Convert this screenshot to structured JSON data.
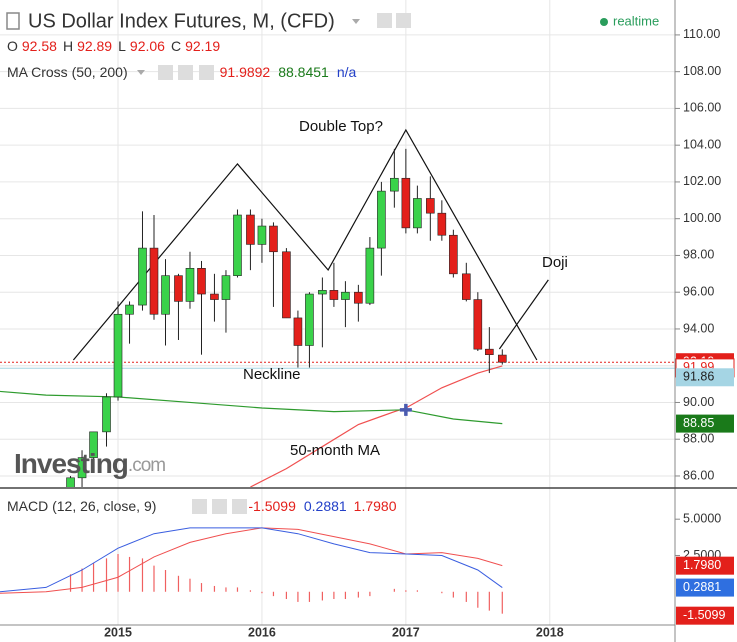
{
  "chart_data": [
    {
      "type": "candlestick",
      "title": "US Dollar Index Futures, M, (CFD)",
      "status": "realtime",
      "ohlc_labels": [
        "O",
        "H",
        "L",
        "C"
      ],
      "ohlc_values": [
        92.58,
        92.89,
        92.06,
        92.19
      ],
      "indicator_title": "MA Cross (50, 200)",
      "indicator_values": [
        91.9892,
        88.8451
      ],
      "indicator_na": "n/a",
      "indicator_colors": [
        "#e3201b",
        "#1a7a1a",
        "#2340c8"
      ],
      "x": [
        2014.67,
        2014.75,
        2014.83,
        2014.92,
        2015.0,
        2015.08,
        2015.17,
        2015.25,
        2015.33,
        2015.42,
        2015.5,
        2015.58,
        2015.67,
        2015.75,
        2015.83,
        2015.92,
        2016.0,
        2016.08,
        2016.17,
        2016.25,
        2016.33,
        2016.42,
        2016.5,
        2016.58,
        2016.67,
        2016.75,
        2016.83,
        2016.92,
        2017.0,
        2017.08,
        2017.17,
        2017.25,
        2017.33,
        2017.42,
        2017.5,
        2017.58,
        2017.67
      ],
      "open": [
        82.7,
        85.9,
        87.0,
        88.4,
        90.3,
        94.8,
        95.3,
        98.4,
        94.8,
        96.9,
        95.5,
        97.3,
        95.9,
        95.6,
        96.9,
        100.2,
        98.6,
        99.6,
        98.2,
        94.6,
        93.1,
        95.9,
        96.1,
        95.6,
        96.0,
        95.4,
        98.4,
        101.5,
        102.2,
        99.5,
        101.1,
        100.3,
        99.1,
        97.0,
        95.6,
        92.9,
        92.58
      ],
      "high": [
        86.0,
        87.4,
        88.4,
        90.5,
        95.5,
        95.5,
        100.4,
        100.2,
        97.8,
        97.0,
        98.2,
        97.7,
        97.0,
        97.2,
        100.5,
        100.5,
        100.0,
        99.8,
        98.4,
        95.0,
        96.0,
        96.8,
        97.6,
        96.6,
        96.4,
        99.0,
        102.0,
        103.8,
        103.8,
        101.8,
        102.3,
        101.0,
        99.4,
        97.6,
        96.0,
        94.1,
        92.89
      ],
      "low": [
        82.6,
        84.5,
        86.5,
        87.6,
        90.1,
        93.2,
        95.0,
        94.5,
        93.1,
        93.4,
        95.1,
        92.6,
        94.4,
        93.8,
        96.8,
        97.2,
        97.6,
        95.2,
        94.6,
        91.9,
        91.9,
        93.0,
        95.2,
        94.1,
        94.4,
        95.3,
        96.9,
        100.6,
        99.2,
        99.2,
        98.8,
        98.8,
        96.8,
        95.5,
        92.8,
        91.6,
        92.06
      ],
      "close": [
        85.9,
        87.0,
        88.4,
        90.3,
        94.8,
        95.3,
        98.4,
        94.8,
        96.9,
        95.5,
        97.3,
        95.9,
        95.6,
        96.9,
        100.2,
        98.6,
        99.6,
        98.2,
        94.6,
        93.1,
        95.9,
        96.1,
        95.6,
        96.0,
        95.4,
        98.4,
        101.5,
        102.2,
        99.5,
        101.1,
        100.3,
        99.1,
        97.0,
        95.6,
        92.9,
        92.6,
        92.19
      ],
      "up_color": "#3ad24a",
      "down_color": "#e3201b",
      "lines": [
        {
          "name": "50-month MA",
          "color": "#f05050",
          "x": [
            2015.92,
            2016.17,
            2016.42,
            2016.67,
            2016.92,
            2017.0,
            2017.25,
            2017.5,
            2017.67
          ],
          "values": [
            85.4,
            86.4,
            87.6,
            88.8,
            89.5,
            89.7,
            90.8,
            91.6,
            91.99
          ]
        },
        {
          "color": "#2e9b2e",
          "x": [
            2014.18,
            2014.5,
            2015.0,
            2015.5,
            2016.0,
            2016.5,
            2017.0,
            2017.33,
            2017.67
          ],
          "values": [
            90.6,
            90.4,
            90.3,
            90.0,
            89.7,
            89.5,
            89.6,
            89.1,
            88.85
          ]
        }
      ],
      "cross": {
        "x": 2017.0,
        "value": 89.6,
        "color": "#4a5bb0"
      },
      "pattern": {
        "name": "Double Top?",
        "x": [
          2014.69,
          2015.83,
          2016.46,
          2017.0,
          2017.91
        ],
        "values": [
          92.31,
          102.98,
          97.21,
          104.83,
          92.31
        ]
      },
      "doji": {
        "name": "Doji",
        "x": [
          2017.65,
          2017.99
        ],
        "values": [
          92.91,
          96.67
        ]
      },
      "neckline": {
        "name": "Neckline",
        "value": 91.86,
        "color": "#a5d5e4"
      },
      "price_line": {
        "value": 92.19,
        "color": "#e3201b"
      },
      "axis_labels": [
        {
          "value": 92.19,
          "bg": "#e3201b",
          "fg": "#ffffff"
        },
        {
          "value": 91.99,
          "bg": "#ffffff",
          "fg": "#e3201b"
        },
        {
          "value": 91.86,
          "bg": "#a5d5e4",
          "fg": "#222222"
        },
        {
          "value": 88.85,
          "bg": "#1a7a1a",
          "fg": "#ffffff"
        }
      ],
      "watermark": {
        "brand": "Investing",
        "suffix": ".com"
      },
      "xlim": [
        2014.18,
        2018.87
      ],
      "xticks": [
        2015,
        2016,
        2017,
        2018
      ],
      "ylim": [
        85.4,
        111.9
      ],
      "yticks": [
        {
          "value": 86,
          "label": "86.00"
        },
        {
          "value": 88,
          "label": "88.00"
        },
        {
          "value": 90,
          "label": "90.00"
        },
        {
          "value": 92,
          "label": "92.00"
        },
        {
          "value": 94,
          "label": "94.00"
        },
        {
          "value": 96,
          "label": "96.00"
        },
        {
          "value": 98,
          "label": "98.00"
        },
        {
          "value": 100,
          "label": "100.00"
        },
        {
          "value": 102,
          "label": "102.00"
        },
        {
          "value": 104,
          "label": "104.00"
        },
        {
          "value": 106,
          "label": "106.00"
        },
        {
          "value": 108,
          "label": "108.00"
        },
        {
          "value": 110,
          "label": "110.00"
        }
      ],
      "grid": true
    },
    {
      "type": "macd",
      "title": "MACD (12, 26, close, 9)",
      "legend": [
        {
          "value": -1.5099,
          "color": "#e3201b",
          "bg": "#e3201b"
        },
        {
          "value": 0.2881,
          "color": "#2340c8",
          "bg": "#2f6fe0"
        },
        {
          "value": 1.798,
          "label": "1.7980",
          "color": "#e3201b",
          "bg": "#e3201b"
        }
      ],
      "histogram": {
        "color": "#f06060",
        "x": [
          2014.67,
          2014.75,
          2014.83,
          2014.92,
          2015.0,
          2015.08,
          2015.17,
          2015.25,
          2015.33,
          2015.42,
          2015.5,
          2015.58,
          2015.67,
          2015.75,
          2015.83,
          2015.92,
          2016.0,
          2016.08,
          2016.17,
          2016.25,
          2016.33,
          2016.42,
          2016.5,
          2016.58,
          2016.67,
          2016.75,
          2016.83,
          2016.92,
          2017.0,
          2017.08,
          2017.17,
          2017.25,
          2017.33,
          2017.42,
          2017.5,
          2017.58,
          2017.67
        ],
        "values": [
          1.2,
          1.6,
          2.0,
          2.3,
          2.6,
          2.4,
          2.3,
          1.8,
          1.5,
          1.1,
          0.9,
          0.6,
          0.4,
          0.3,
          0.3,
          0.1,
          -0.1,
          -0.3,
          -0.5,
          -0.7,
          -0.7,
          -0.6,
          -0.5,
          -0.5,
          -0.4,
          -0.3,
          0.0,
          0.2,
          0.1,
          0.1,
          0.0,
          -0.1,
          -0.4,
          -0.7,
          -1.1,
          -1.3,
          -1.5099
        ]
      },
      "macd": {
        "color": "#3a5ee0",
        "x": [
          2014.18,
          2014.5,
          2014.75,
          2015.0,
          2015.25,
          2015.5,
          2015.75,
          2016.0,
          2016.25,
          2016.5,
          2016.75,
          2017.0,
          2017.25,
          2017.5,
          2017.67
        ],
        "values": [
          0.0,
          0.3,
          1.5,
          3.0,
          4.0,
          4.4,
          4.4,
          4.4,
          4.0,
          3.3,
          2.7,
          2.6,
          2.5,
          1.5,
          0.2881
        ]
      },
      "signal": {
        "color": "#f05050",
        "x": [
          2014.18,
          2014.5,
          2014.75,
          2015.0,
          2015.25,
          2015.5,
          2015.75,
          2016.0,
          2016.25,
          2016.5,
          2016.75,
          2017.0,
          2017.25,
          2017.5,
          2017.67
        ],
        "values": [
          -0.1,
          0.0,
          0.3,
          1.0,
          2.4,
          3.4,
          4.0,
          4.4,
          4.3,
          3.8,
          3.3,
          2.6,
          2.7,
          2.3,
          1.798
        ]
      },
      "ylim": [
        -2.29,
        7.08
      ],
      "yticks": [
        {
          "value": 2.5,
          "label": "2.5000"
        },
        {
          "value": 5,
          "label": "5.0000"
        }
      ]
    }
  ]
}
